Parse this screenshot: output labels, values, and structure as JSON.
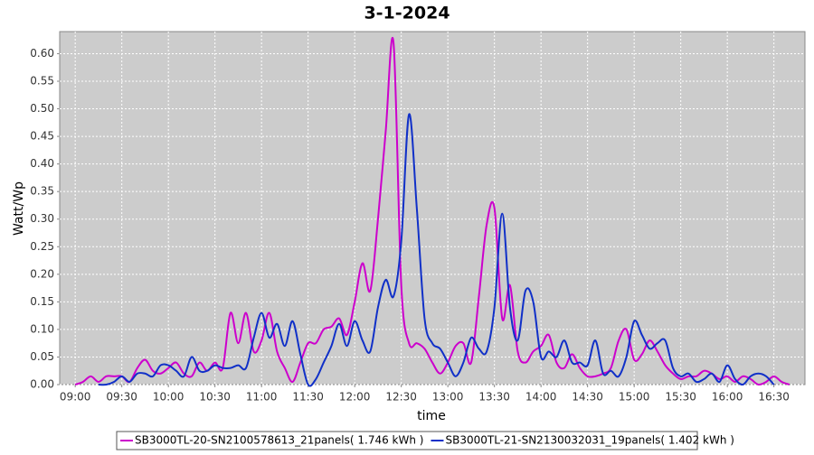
{
  "chart_data": {
    "type": "line",
    "title": "3-1-2024",
    "x_label": "time",
    "y_label": "Watt/Wp",
    "grid": true,
    "legend": "bottom",
    "xlim": [
      530,
      1010
    ],
    "ylim": [
      0,
      0.64
    ],
    "xticks": [
      {
        "value": 540,
        "label": "09:00"
      },
      {
        "value": 570,
        "label": "09:30"
      },
      {
        "value": 600,
        "label": "10:00"
      },
      {
        "value": 630,
        "label": "10:30"
      },
      {
        "value": 660,
        "label": "11:00"
      },
      {
        "value": 690,
        "label": "11:30"
      },
      {
        "value": 720,
        "label": "12:00"
      },
      {
        "value": 750,
        "label": "12:30"
      },
      {
        "value": 780,
        "label": "13:00"
      },
      {
        "value": 810,
        "label": "13:30"
      },
      {
        "value": 840,
        "label": "14:00"
      },
      {
        "value": 870,
        "label": "14:30"
      },
      {
        "value": 900,
        "label": "15:00"
      },
      {
        "value": 930,
        "label": "15:30"
      },
      {
        "value": 960,
        "label": "16:00"
      },
      {
        "value": 990,
        "label": "16:30"
      }
    ],
    "yticks": [
      {
        "value": 0,
        "label": "0.00"
      },
      {
        "value": 0.05,
        "label": "0.05"
      },
      {
        "value": 0.1,
        "label": "0.10"
      },
      {
        "value": 0.15,
        "label": "0.15"
      },
      {
        "value": 0.2,
        "label": "0.20"
      },
      {
        "value": 0.25,
        "label": "0.25"
      },
      {
        "value": 0.3,
        "label": "0.30"
      },
      {
        "value": 0.35,
        "label": "0.35"
      },
      {
        "value": 0.4,
        "label": "0.40"
      },
      {
        "value": 0.45,
        "label": "0.45"
      },
      {
        "value": 0.5,
        "label": "0.50"
      },
      {
        "value": 0.55,
        "label": "0.55"
      },
      {
        "value": 0.6,
        "label": "0.60"
      }
    ],
    "series": [
      {
        "name": "SB3000TL-20-SN2100578613_21panels( 1.746 kWh )",
        "color": "#cc00cc",
        "x": [
          540,
          545,
          550,
          555,
          560,
          565,
          570,
          575,
          580,
          585,
          590,
          595,
          600,
          605,
          610,
          615,
          620,
          625,
          630,
          635,
          640,
          645,
          650,
          655,
          660,
          665,
          670,
          675,
          680,
          685,
          690,
          695,
          700,
          705,
          710,
          715,
          720,
          725,
          730,
          735,
          740,
          745,
          750,
          755,
          760,
          765,
          770,
          775,
          780,
          785,
          790,
          795,
          800,
          805,
          810,
          815,
          820,
          825,
          830,
          835,
          840,
          845,
          850,
          855,
          860,
          865,
          870,
          875,
          880,
          885,
          890,
          895,
          900,
          905,
          910,
          915,
          920,
          925,
          930,
          935,
          940,
          945,
          950,
          955,
          960,
          965,
          970,
          975,
          980,
          985,
          990,
          995,
          1000
        ],
        "values": [
          0,
          0.005,
          0.015,
          0.005,
          0.015,
          0.015,
          0.015,
          0.005,
          0.03,
          0.045,
          0.025,
          0.02,
          0.03,
          0.04,
          0.02,
          0.015,
          0.04,
          0.025,
          0.04,
          0.03,
          0.13,
          0.075,
          0.13,
          0.06,
          0.08,
          0.13,
          0.06,
          0.03,
          0.005,
          0.04,
          0.075,
          0.075,
          0.1,
          0.105,
          0.12,
          0.09,
          0.15,
          0.22,
          0.17,
          0.3,
          0.46,
          0.62,
          0.18,
          0.075,
          0.075,
          0.065,
          0.04,
          0.02,
          0.04,
          0.07,
          0.075,
          0.04,
          0.16,
          0.29,
          0.32,
          0.12,
          0.18,
          0.06,
          0.04,
          0.06,
          0.07,
          0.09,
          0.04,
          0.03,
          0.055,
          0.03,
          0.015,
          0.015,
          0.02,
          0.03,
          0.08,
          0.1,
          0.045,
          0.055,
          0.08,
          0.06,
          0.035,
          0.02,
          0.01,
          0.015,
          0.015,
          0.025,
          0.02,
          0.01,
          0.015,
          0.005,
          0.015,
          0.01,
          0,
          0.005,
          0.015,
          0.005,
          0
        ]
      },
      {
        "name": "SB3000TL-21-SN2130032031_19panels( 1.402 kWh )",
        "color": "#1030c8",
        "x": [
          555,
          560,
          565,
          570,
          575,
          580,
          585,
          590,
          595,
          600,
          605,
          610,
          615,
          620,
          625,
          630,
          635,
          640,
          645,
          650,
          655,
          660,
          665,
          670,
          675,
          680,
          685,
          690,
          695,
          700,
          705,
          710,
          715,
          720,
          725,
          730,
          735,
          740,
          745,
          750,
          755,
          760,
          765,
          770,
          775,
          780,
          785,
          790,
          795,
          800,
          805,
          810,
          815,
          820,
          825,
          830,
          835,
          840,
          845,
          850,
          855,
          860,
          865,
          870,
          875,
          880,
          885,
          890,
          895,
          900,
          905,
          910,
          915,
          920,
          925,
          930,
          935,
          940,
          945,
          950,
          955,
          960,
          965,
          970,
          975,
          980,
          985,
          990
        ],
        "values": [
          0,
          0,
          0.005,
          0.015,
          0.005,
          0.02,
          0.02,
          0.015,
          0.035,
          0.035,
          0.025,
          0.015,
          0.05,
          0.025,
          0.025,
          0.035,
          0.03,
          0.03,
          0.035,
          0.03,
          0.085,
          0.13,
          0.085,
          0.11,
          0.07,
          0.115,
          0.055,
          0,
          0.01,
          0.04,
          0.07,
          0.11,
          0.07,
          0.115,
          0.08,
          0.06,
          0.14,
          0.19,
          0.16,
          0.26,
          0.49,
          0.32,
          0.12,
          0.075,
          0.065,
          0.04,
          0.015,
          0.04,
          0.085,
          0.065,
          0.06,
          0.14,
          0.31,
          0.14,
          0.08,
          0.17,
          0.15,
          0.05,
          0.06,
          0.05,
          0.08,
          0.04,
          0.04,
          0.035,
          0.08,
          0.02,
          0.025,
          0.015,
          0.05,
          0.115,
          0.09,
          0.065,
          0.075,
          0.08,
          0.03,
          0.015,
          0.02,
          0.005,
          0.01,
          0.02,
          0.005,
          0.035,
          0.01,
          0,
          0.015,
          0.02,
          0.015,
          0
        ]
      }
    ]
  }
}
